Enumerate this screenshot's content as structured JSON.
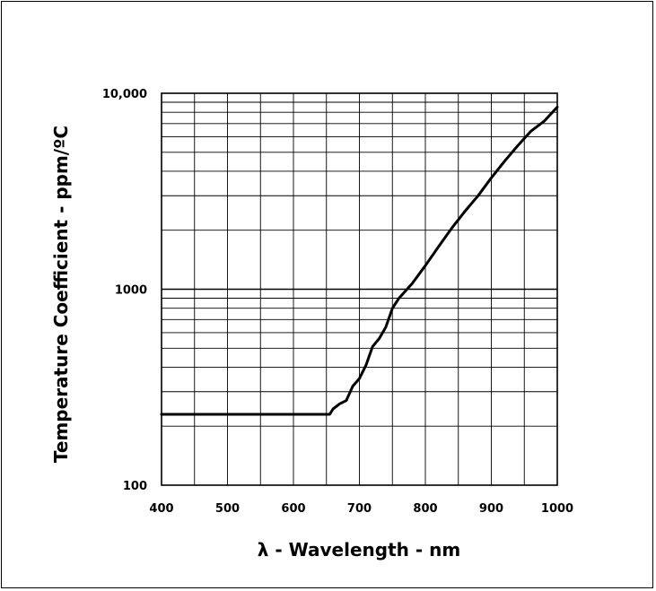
{
  "chart_data": {
    "type": "line",
    "xlabel": "λ - Wavelength - nm",
    "ylabel": "Temperature Coefficient - ppm/ºC",
    "xlim": [
      400,
      1000
    ],
    "ylim": [
      100,
      10000
    ],
    "yscale": "log",
    "grid": true,
    "x_ticks": [
      "400",
      "500",
      "600",
      "700",
      "800",
      "900",
      "1000"
    ],
    "y_ticks": [
      "100",
      "1000",
      "10,000"
    ],
    "series": [
      {
        "x": [
          400,
          500,
          600,
          655,
          660,
          670,
          680,
          690,
          700,
          710,
          720,
          730,
          740,
          750,
          760,
          780,
          800,
          820,
          840,
          860,
          880,
          900,
          920,
          940,
          960,
          980,
          1000
        ],
        "y": [
          230,
          230,
          230,
          230,
          245,
          260,
          270,
          320,
          350,
          410,
          510,
          560,
          640,
          800,
          900,
          1070,
          1320,
          1650,
          2050,
          2500,
          3000,
          3700,
          4500,
          5400,
          6400,
          7200,
          8500
        ]
      }
    ]
  }
}
